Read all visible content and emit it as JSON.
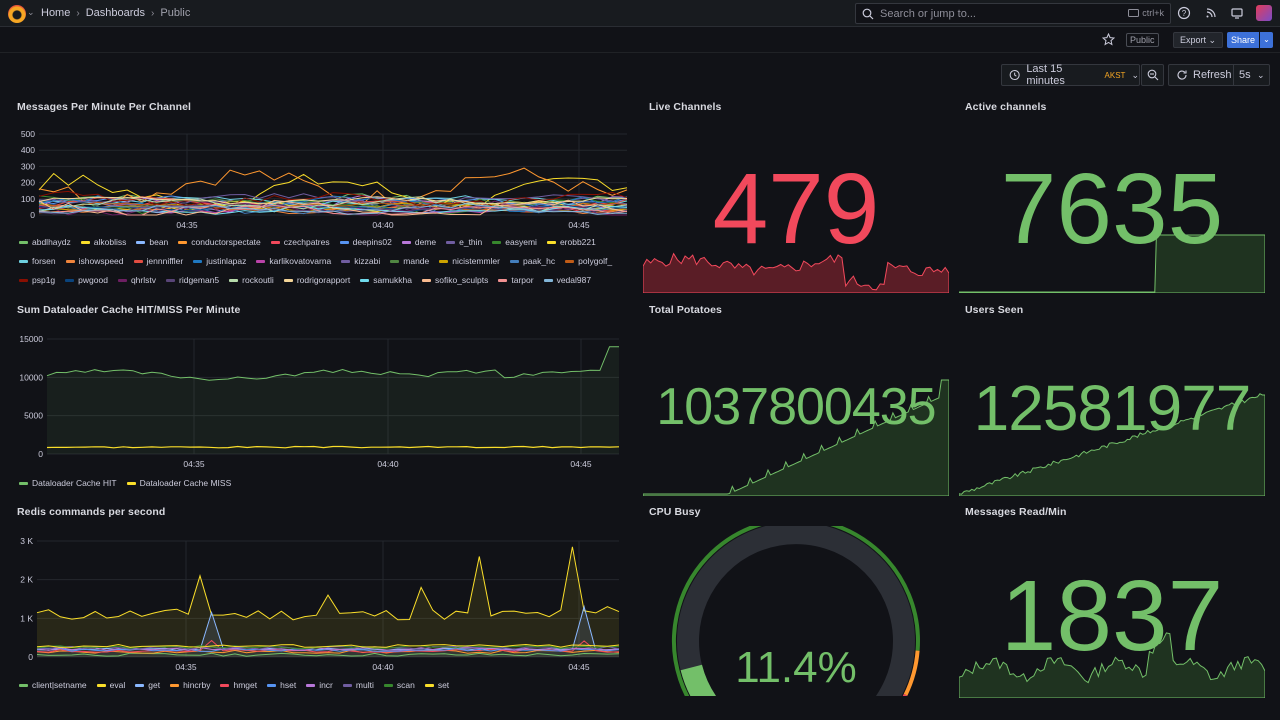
{
  "nav": {
    "breadcrumbs": [
      "Home",
      "Dashboards",
      "Public"
    ],
    "search_placeholder": "Search or jump to...",
    "search_shortcut": "ctrl+k"
  },
  "toolbar": {
    "public_tag": "Public",
    "export_label": "Export",
    "share_label": "Share",
    "time_range": "Last 15 minutes",
    "timezone": "AKST",
    "refresh_label": "Refresh",
    "refresh_interval": "5s"
  },
  "colors": {
    "green": "#73bf69",
    "red": "#f2495c",
    "yellow": "#fade2a",
    "blue": "#5794f2",
    "orange": "#ff9830",
    "purple": "#b877d9"
  },
  "panels": {
    "messages_per_minute": {
      "title": "Messages Per Minute Per Channel",
      "chart_data": {
        "type": "line",
        "y_ticks": [
          "500",
          "400",
          "300",
          "200",
          "100",
          "0"
        ],
        "ylim": [
          0,
          500
        ],
        "x_ticks": [
          "04:35",
          "04:40",
          "04:45"
        ],
        "series": [
          {
            "name": "abdlhaydz",
            "color": "#73bf69"
          },
          {
            "name": "alkobliss",
            "color": "#fade2a"
          },
          {
            "name": "bean",
            "color": "#8ab8ff"
          },
          {
            "name": "conductorspectate",
            "color": "#ff9830"
          },
          {
            "name": "czechpatres",
            "color": "#f2495c"
          },
          {
            "name": "deepins02",
            "color": "#5794f2"
          },
          {
            "name": "deme",
            "color": "#b877d9"
          },
          {
            "name": "e_thin",
            "color": "#705da0"
          },
          {
            "name": "easyemi",
            "color": "#37872d"
          },
          {
            "name": "erobb221",
            "color": "#fade2a"
          },
          {
            "name": "forsen",
            "color": "#6ed0e0"
          },
          {
            "name": "ishowspeed",
            "color": "#ef843c"
          },
          {
            "name": "jennniffler",
            "color": "#e24d42"
          },
          {
            "name": "justinlapaz",
            "color": "#1f78c1"
          },
          {
            "name": "karlikovatovarna",
            "color": "#ba43a9"
          },
          {
            "name": "kizzabi",
            "color": "#705da0"
          },
          {
            "name": "mande",
            "color": "#508642"
          },
          {
            "name": "nicistemmler",
            "color": "#cca300"
          },
          {
            "name": "paak_hc",
            "color": "#447ebc"
          },
          {
            "name": "polygolf_",
            "color": "#c15c17"
          },
          {
            "name": "psp1g",
            "color": "#890f02"
          },
          {
            "name": "pwgood",
            "color": "#0a437c"
          },
          {
            "name": "qhrlstv",
            "color": "#6d1f62"
          },
          {
            "name": "ridgeman5",
            "color": "#584477"
          },
          {
            "name": "rockoutli",
            "color": "#b7dbab"
          },
          {
            "name": "rodrigorapport",
            "color": "#f4d598"
          },
          {
            "name": "samukkha",
            "color": "#70dbed"
          },
          {
            "name": "sofiko_sculpts",
            "color": "#f9ba8f"
          },
          {
            "name": "tarpor",
            "color": "#f29191"
          },
          {
            "name": "vedal987",
            "color": "#82b5d8"
          }
        ]
      }
    },
    "live_channels": {
      "title": "Live Channels",
      "value": "479",
      "color": "#f2495c"
    },
    "active_channels": {
      "title": "Active channels",
      "value": "7635",
      "color": "#73bf69"
    },
    "dataloader": {
      "title": "Sum Dataloader Cache HIT/MISS Per Minute",
      "chart_data": {
        "type": "line",
        "y_ticks": [
          "15000",
          "10000",
          "5000",
          "0"
        ],
        "ylim": [
          0,
          15000
        ],
        "x_ticks": [
          "04:35",
          "04:40",
          "04:45"
        ],
        "series": [
          {
            "name": "Dataloader Cache HIT",
            "color": "#73bf69"
          },
          {
            "name": "Dataloader Cache MISS",
            "color": "#fade2a"
          }
        ]
      }
    },
    "total_potatoes": {
      "title": "Total Potatoes",
      "value": "1037800435",
      "color": "#73bf69"
    },
    "users_seen": {
      "title": "Users Seen",
      "value": "12581977",
      "color": "#73bf69"
    },
    "redis": {
      "title": "Redis commands per second",
      "chart_data": {
        "type": "line",
        "y_ticks": [
          "3 K",
          "2 K",
          "1 K",
          "0"
        ],
        "ylim": [
          0,
          3000
        ],
        "x_ticks": [
          "04:35",
          "04:40",
          "04:45"
        ],
        "series": [
          {
            "name": "client|setname",
            "color": "#73bf69"
          },
          {
            "name": "eval",
            "color": "#fade2a"
          },
          {
            "name": "get",
            "color": "#8ab8ff"
          },
          {
            "name": "hincrby",
            "color": "#ff9830"
          },
          {
            "name": "hmget",
            "color": "#f2495c"
          },
          {
            "name": "hset",
            "color": "#5794f2"
          },
          {
            "name": "incr",
            "color": "#b877d9"
          },
          {
            "name": "multi",
            "color": "#705da0"
          },
          {
            "name": "scan",
            "color": "#37872d"
          },
          {
            "name": "set",
            "color": "#fade2a"
          }
        ]
      }
    },
    "cpu_busy": {
      "title": "CPU Busy",
      "value": "11.4%",
      "percent": 11.4,
      "color": "#73bf69"
    },
    "messages_read": {
      "title": "Messages Read/Min",
      "value": "1837",
      "color": "#73bf69"
    }
  }
}
